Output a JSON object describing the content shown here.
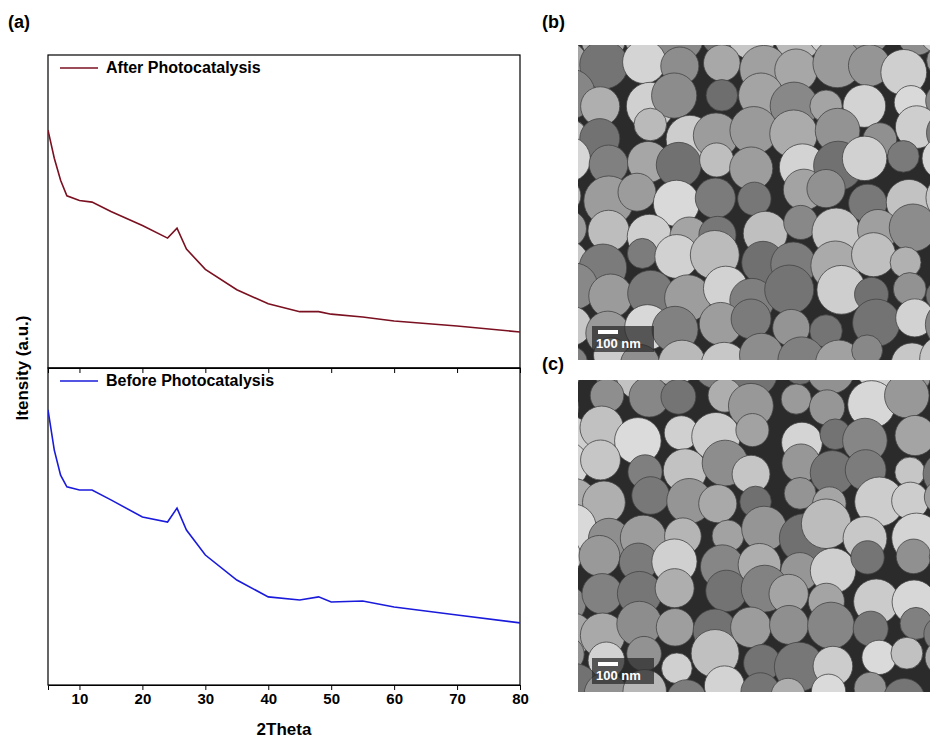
{
  "chart_data": [
    {
      "type": "line",
      "panel": "(a)",
      "x": [
        5,
        6,
        7,
        8,
        10,
        12,
        15,
        20,
        24,
        25.5,
        27,
        30,
        35,
        40,
        45,
        48,
        50,
        55,
        60,
        70,
        80
      ],
      "series": [
        {
          "name": "After Photocatalysis",
          "color": "#7a1020",
          "values": [
            76,
            67,
            60,
            55,
            53.5,
            53,
            50,
            45.5,
            41.5,
            44.7,
            38,
            31.5,
            25,
            20.5,
            18,
            18,
            17.2,
            16.3,
            15,
            13.4,
            11.5
          ]
        }
      ],
      "xlim": [
        5,
        80
      ],
      "xticks": [
        10,
        20,
        30,
        40,
        50,
        60,
        70,
        80
      ],
      "ylim": [
        0,
        100
      ],
      "tick_labels": false,
      "legend": "upper left"
    },
    {
      "type": "line",
      "x": [
        5,
        6,
        7,
        8,
        10,
        12,
        15,
        20,
        24,
        25.5,
        27,
        30,
        35,
        40,
        45,
        48,
        50,
        55,
        60,
        70,
        80
      ],
      "series": [
        {
          "name": "Before Photocatalysis",
          "color": "#1a1adb",
          "values": [
            86.8,
            74.1,
            66.2,
            62.5,
            61.5,
            61.5,
            58.4,
            53,
            51.4,
            55.8,
            48.9,
            41,
            33.1,
            27.8,
            26.8,
            27.8,
            26.2,
            26.5,
            24.6,
            22.1,
            19.6
          ]
        }
      ],
      "x_label": "2Theta",
      "y_label": "Itensity (a.u.)",
      "xlim": [
        5,
        80
      ],
      "xticks": [
        10,
        20,
        30,
        40,
        50,
        60,
        70,
        80
      ],
      "ylim": [
        0,
        100
      ],
      "tick_labels": "x",
      "legend": "upper left"
    }
  ],
  "images": [
    {
      "panel": "(b)",
      "scale_bar": "100 nm"
    },
    {
      "panel": "(c)",
      "scale_bar": "100 nm"
    }
  ]
}
